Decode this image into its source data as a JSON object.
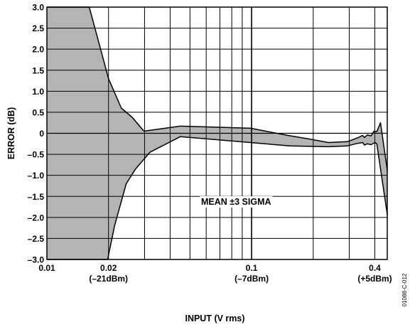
{
  "chart_data": {
    "type": "area",
    "xlabel": "INPUT (V rms)",
    "ylabel": "ERROR (dB)",
    "x_scale": "log",
    "xlim": [
      0.01,
      0.46
    ],
    "ylim": [
      -3.0,
      3.0
    ],
    "grid": true,
    "x_ticks": [
      {
        "value": 0.01,
        "label": "0.01",
        "sublabel": ""
      },
      {
        "value": 0.02,
        "label": "0.02",
        "sublabel": "(–21dBm)"
      },
      {
        "value": 0.1,
        "label": "0.1",
        "sublabel": "(–7dBm)"
      },
      {
        "value": 0.4,
        "label": "0.4",
        "sublabel": "(+5dBm)"
      }
    ],
    "x_gridlines": [
      0.02,
      0.03,
      0.04,
      0.05,
      0.06,
      0.07,
      0.08,
      0.09,
      0.1,
      0.2,
      0.3,
      0.4
    ],
    "y_ticks": [
      {
        "value": 3.0,
        "label": "3.0"
      },
      {
        "value": 2.5,
        "label": "2.5"
      },
      {
        "value": 2.0,
        "label": "2.0"
      },
      {
        "value": 1.5,
        "label": "1.5"
      },
      {
        "value": 1.0,
        "label": "1.0"
      },
      {
        "value": 0.5,
        "label": "0.5"
      },
      {
        "value": 0,
        "label": "0"
      },
      {
        "value": -0.5,
        "label": "–0.5"
      },
      {
        "value": -1.0,
        "label": "–1.0"
      },
      {
        "value": -1.5,
        "label": "–1.5"
      },
      {
        "value": -2.0,
        "label": "–2.0"
      },
      {
        "value": -2.5,
        "label": "–2.5"
      },
      {
        "value": -3.0,
        "label": "–3.0"
      }
    ],
    "annotation": "MEAN ±3 SIGMA",
    "figure_id": "01088-C-012",
    "fill_color": "#b4b4b4",
    "series": [
      {
        "x": [
          0.01,
          0.0161,
          0.0183,
          0.02,
          0.0231,
          0.0261,
          0.0298,
          0.0449,
          0.0988,
          0.1505,
          0.189,
          0.2374,
          0.2936,
          0.3287,
          0.3486,
          0.3559,
          0.3676,
          0.3836,
          0.3961,
          0.409,
          0.4265,
          0.4606
        ],
        "values": [
          3.0,
          3.0,
          2.0,
          1.3,
          0.6,
          0.38,
          0.05,
          0.17,
          0.12,
          -0.05,
          -0.13,
          -0.22,
          -0.2,
          -0.11,
          -0.05,
          -0.1,
          -0.04,
          -0.06,
          0.05,
          0.04,
          0.25,
          -0.9
        ]
      },
      {
        "x": [
          0.01,
          0.0198,
          0.0214,
          0.0244,
          0.0271,
          0.0319,
          0.0449,
          0.0988,
          0.1538,
          0.2374,
          0.2936,
          0.3287,
          0.3486,
          0.3559,
          0.3676,
          0.3836,
          0.4005,
          0.409,
          0.4606
        ],
        "values": [
          -3.0,
          -3.0,
          -2.2,
          -1.2,
          -0.85,
          -0.45,
          -0.08,
          -0.22,
          -0.3,
          -0.32,
          -0.3,
          -0.24,
          -0.22,
          -0.28,
          -0.25,
          -0.27,
          -0.22,
          -0.25,
          -1.95
        ]
      }
    ]
  }
}
